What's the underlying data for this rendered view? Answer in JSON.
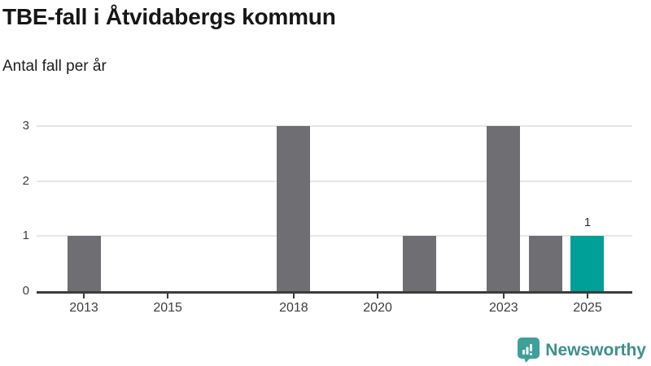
{
  "header": {
    "title": "TBE-fall i Åtvidabergs kommun",
    "subtitle": "Antal fall per år"
  },
  "chart_data": {
    "type": "bar",
    "title": "TBE-fall i Åtvidabergs kommun",
    "subtitle": "Antal fall per år",
    "categories": [
      "2013",
      "2014",
      "2015",
      "2016",
      "2017",
      "2018",
      "2019",
      "2020",
      "2021",
      "2022",
      "2023",
      "2024",
      "2025"
    ],
    "values": [
      1,
      0,
      0,
      0,
      0,
      3,
      0,
      0,
      1,
      0,
      3,
      1,
      1
    ],
    "highlight_category": "2025",
    "x_tick_labels": [
      "2013",
      "2015",
      "2018",
      "2020",
      "2023",
      "2025"
    ],
    "y_tick_labels": [
      "0",
      "1",
      "2",
      "3"
    ],
    "ylim": [
      0,
      3
    ],
    "grid": "horizontal-gridlines",
    "legend": "none",
    "bar_color": "#6e6e73",
    "highlight_color": "#00a099",
    "annotations": [
      {
        "category": "2025",
        "text": "1"
      }
    ]
  },
  "footer": {
    "brand": "Newsworthy",
    "logo_icon": "bar-chart-speech-bubble-icon",
    "brand_color": "#3d8f8d",
    "logo_color": "#3da09b"
  }
}
